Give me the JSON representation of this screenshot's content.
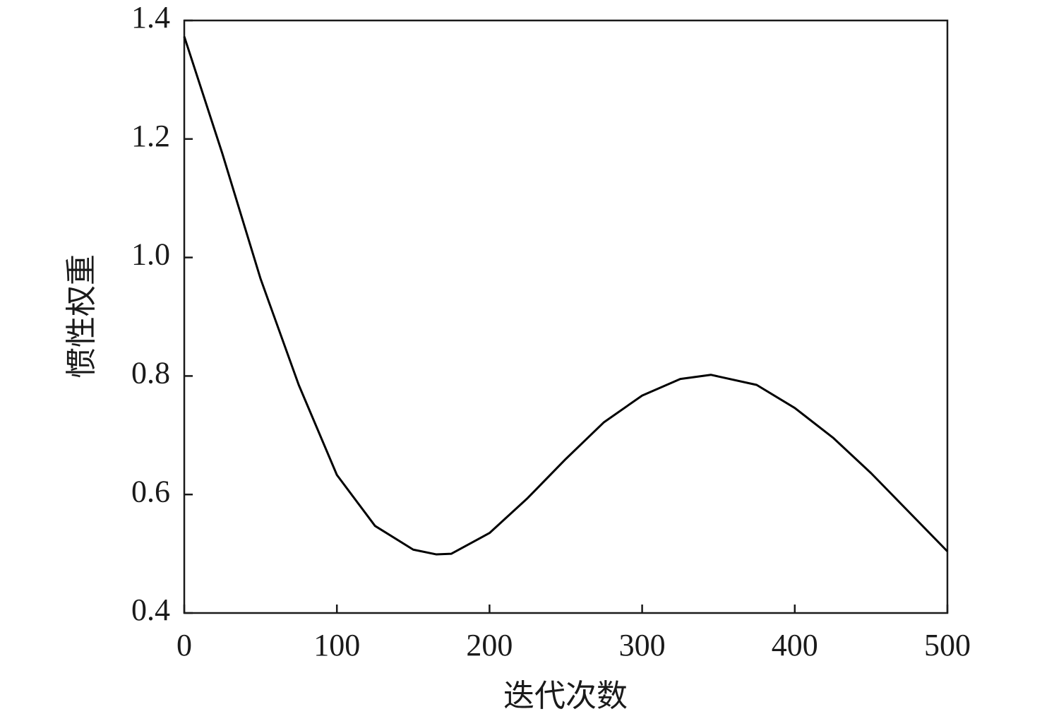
{
  "chart_data": {
    "type": "line",
    "xlabel": "迭代次数",
    "ylabel": "惯性权重",
    "x": [
      0,
      25,
      50,
      75,
      100,
      125,
      150,
      165,
      175,
      200,
      225,
      250,
      275,
      300,
      325,
      345,
      375,
      400,
      425,
      450,
      475,
      500
    ],
    "values": [
      1.373,
      1.175,
      0.964,
      0.785,
      0.633,
      0.547,
      0.507,
      0.499,
      0.5,
      0.535,
      0.594,
      0.66,
      0.722,
      0.767,
      0.795,
      0.802,
      0.785,
      0.746,
      0.696,
      0.636,
      0.57,
      0.504
    ],
    "color": "#000000",
    "xlim": [
      0,
      500
    ],
    "xticks": [
      0,
      100,
      200,
      300,
      400,
      500
    ],
    "ylim": [
      0.4,
      1.4
    ],
    "yticks": [
      0.4,
      0.6,
      0.8,
      {
        "value": 1,
        "label": "1.0"
      },
      1.2,
      1.4
    ]
  }
}
